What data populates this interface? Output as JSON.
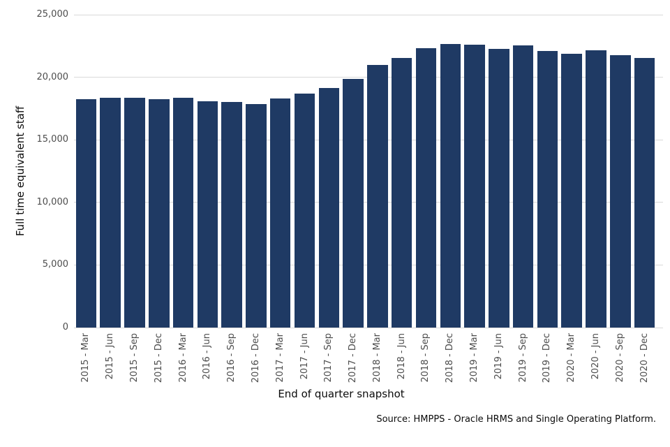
{
  "figure": {
    "background": "#ffffff"
  },
  "chart_data": {
    "type": "bar",
    "title": "",
    "xlabel": "End of quarter snapshot",
    "ylabel": "Full time equivalent staff",
    "source_note": "Source: HMPPS - Oracle HRMS and Single Operating Platform.",
    "categories": [
      "2015 - Mar",
      "2015 - Jun",
      "2015 - Sep",
      "2015 - Dec",
      "2016 - Mar",
      "2016 - Jun",
      "2016 - Sep",
      "2016 - Dec",
      "2017 - Mar",
      "2017 - Jun",
      "2017 - Sep",
      "2017 - Dec",
      "2018 - Mar",
      "2018 - Jun",
      "2018 - Sep",
      "2018 - Dec",
      "2019 - Mar",
      "2019 - Jun",
      "2019 - Sep",
      "2019 - Dec",
      "2020 - Mar",
      "2020 - Jun",
      "2020 - Sep",
      "2020 - Dec"
    ],
    "values": [
      18240,
      18360,
      18380,
      18230,
      18340,
      18060,
      18010,
      17860,
      18320,
      18670,
      19120,
      19870,
      21000,
      21560,
      22310,
      22670,
      22600,
      22270,
      22520,
      22120,
      21880,
      22170,
      21770,
      21560
    ],
    "ylim": [
      0,
      25000
    ],
    "ytick_values": [
      0,
      5000,
      10000,
      15000,
      20000,
      25000
    ],
    "ytick_labels": [
      "0",
      "5,000",
      "10,000",
      "15,000",
      "20,000",
      "25,000"
    ],
    "grid": "horizontal",
    "legend": "none",
    "bar_color": "#1f3a64",
    "gridline_color": "#d9d9d9",
    "tick_label_color": "#4d4d4d",
    "text_color": "#0b0b0b"
  }
}
